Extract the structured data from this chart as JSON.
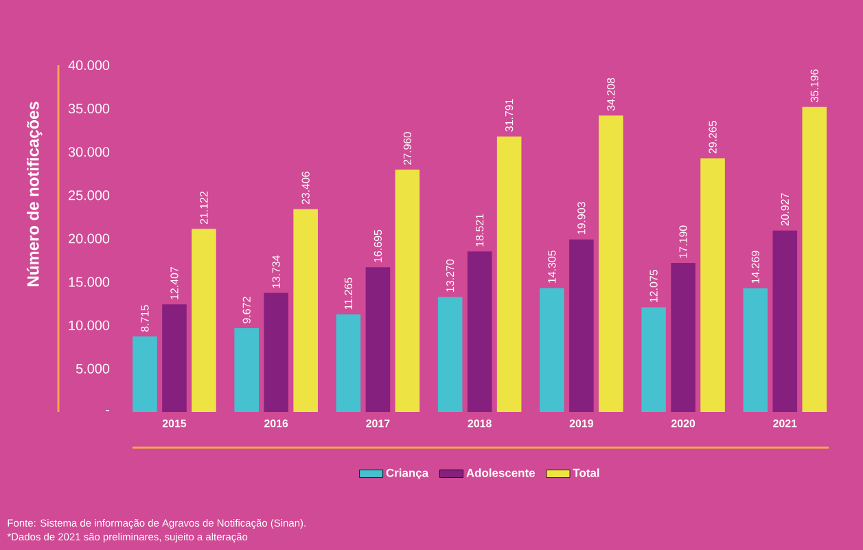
{
  "chart_data": {
    "type": "bar",
    "ylabel": "Número de notificações",
    "categories": [
      "2015",
      "2016",
      "2017",
      "2018",
      "2019",
      "2020",
      "2021"
    ],
    "series": [
      {
        "name": "Criança",
        "color": "#45c1d0",
        "values": [
          8715,
          9672,
          11265,
          13270,
          14305,
          12075,
          14269
        ],
        "value_labels": [
          "8.715",
          "9.672",
          "11.265",
          "13.270",
          "14.305",
          "12.075",
          "14.269"
        ]
      },
      {
        "name": "Adolescente",
        "color": "#86207f",
        "values": [
          12407,
          13734,
          16695,
          18521,
          19903,
          17190,
          20927
        ],
        "value_labels": [
          "12.407",
          "13.734",
          "16.695",
          "18.521",
          "19.903",
          "17.190",
          "20.927"
        ]
      },
      {
        "name": "Total",
        "color": "#ede443",
        "values": [
          21122,
          23406,
          27960,
          31791,
          34208,
          29265,
          35196
        ],
        "value_labels": [
          "21.122",
          "23.406",
          "27.960",
          "31.791",
          "34.208",
          "29.265",
          "35.196"
        ]
      }
    ],
    "ylim": [
      0,
      40000
    ],
    "yticks": [
      {
        "value": 0,
        "label": "-"
      },
      {
        "value": 5000,
        "label": "5.000"
      },
      {
        "value": 10000,
        "label": "10.000"
      },
      {
        "value": 15000,
        "label": "15.000"
      },
      {
        "value": 20000,
        "label": "20.000"
      },
      {
        "value": 25000,
        "label": "25.000"
      },
      {
        "value": 30000,
        "label": "30.000"
      },
      {
        "value": 35000,
        "label": "35.000"
      },
      {
        "value": 40000,
        "label": "40.000"
      }
    ],
    "legend": "bottom",
    "annotations": [
      "Fonte: Sistema de informação de Agravos de Notificação (Sinan).",
      "*Dados de 2021 são preliminares, sujeito a alteração"
    ]
  }
}
